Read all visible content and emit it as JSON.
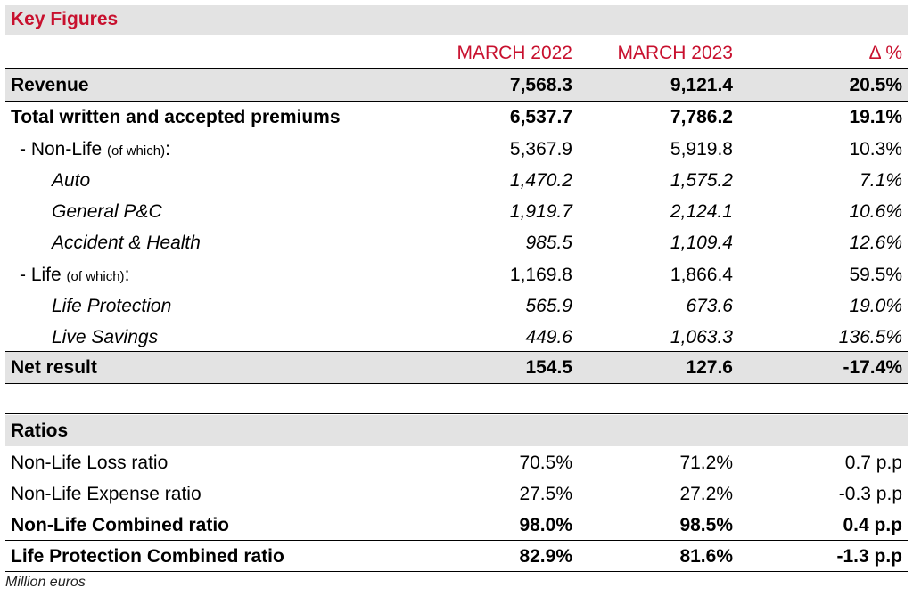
{
  "title": "Key Figures",
  "columns": [
    "MARCH 2022",
    "MARCH 2023",
    "Δ %"
  ],
  "key_figures": [
    {
      "label": "Revenue",
      "v1": "7,568.3",
      "v2": "9,121.4",
      "v3": "20.5%"
    },
    {
      "label": "Total written and accepted premiums",
      "v1": "6,537.7",
      "v2": "7,786.2",
      "v3": "19.1%"
    },
    {
      "label": "- Non-Life",
      "note": "(of which)",
      "suffix": ":",
      "v1": "5,367.9",
      "v2": "5,919.8",
      "v3": "10.3%"
    },
    {
      "label": "Auto",
      "v1": "1,470.2",
      "v2": "1,575.2",
      "v3": "7.1%"
    },
    {
      "label": "General P&C",
      "v1": "1,919.7",
      "v2": "2,124.1",
      "v3": "10.6%"
    },
    {
      "label": "Accident & Health",
      "v1": "985.5",
      "v2": "1,109.4",
      "v3": "12.6%"
    },
    {
      "label": "- Life",
      "note": "(of which)",
      "suffix": ":",
      "v1": "1,169.8",
      "v2": "1,866.4",
      "v3": "59.5%"
    },
    {
      "label": "Life Protection",
      "v1": "565.9",
      "v2": "673.6",
      "v3": "19.0%"
    },
    {
      "label": "Live Savings",
      "v1": "449.6",
      "v2": "1,063.3",
      "v3": "136.5%"
    },
    {
      "label": "Net result",
      "v1": "154.5",
      "v2": "127.6",
      "v3": "-17.4%"
    }
  ],
  "ratios_title": "Ratios",
  "ratios": [
    {
      "label": "Non-Life Loss ratio",
      "v1": "70.5%",
      "v2": "71.2%",
      "v3": "0.7 p.p"
    },
    {
      "label": "Non-Life Expense ratio",
      "v1": "27.5%",
      "v2": "27.2%",
      "v3": "-0.3 p.p"
    },
    {
      "label": "Non-Life Combined ratio",
      "v1": "98.0%",
      "v2": "98.5%",
      "v3": "0.4 p.p"
    },
    {
      "label": "Life Protection Combined ratio",
      "v1": "82.9%",
      "v2": "81.6%",
      "v3": "-1.3 p.p"
    }
  ],
  "footer": "Million euros"
}
